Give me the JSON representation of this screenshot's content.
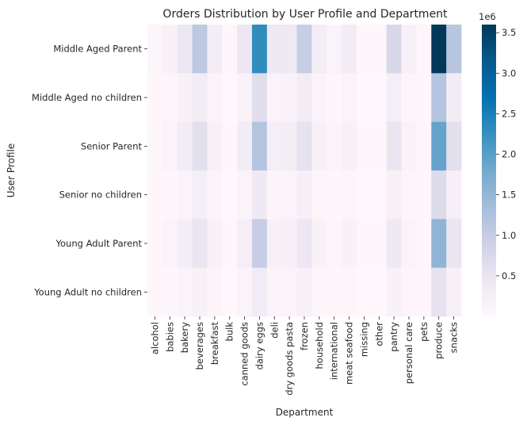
{
  "chart_data": {
    "type": "heatmap",
    "title": "Orders Distribution by User Profile and Department",
    "xlabel": "Department",
    "ylabel": "User Profile",
    "x": [
      "alcohol",
      "babies",
      "bakery",
      "beverages",
      "breakfast",
      "bulk",
      "canned goods",
      "dairy eggs",
      "deli",
      "dry goods pasta",
      "frozen",
      "household",
      "international",
      "meat seafood",
      "missing",
      "other",
      "pantry",
      "personal care",
      "pets",
      "produce",
      "snacks"
    ],
    "y": [
      "Middle Aged Parent",
      "Middle Aged no children",
      "Senior Parent",
      "Senior no children",
      "Young Adult Parent",
      "Young Adult no children"
    ],
    "values": [
      [
        60000,
        175000,
        460000,
        1100000,
        290000,
        30000,
        440000,
        2300000,
        380000,
        400000,
        1000000,
        280000,
        120000,
        300000,
        30000,
        40000,
        760000,
        180000,
        40000,
        3600000,
        1150000
      ],
      [
        20000,
        50000,
        170000,
        300000,
        100000,
        10000,
        150000,
        650000,
        120000,
        140000,
        300000,
        100000,
        40000,
        100000,
        10000,
        10000,
        250000,
        60000,
        20000,
        1200000,
        300000
      ],
      [
        40000,
        120000,
        320000,
        600000,
        200000,
        20000,
        300000,
        1200000,
        250000,
        280000,
        550000,
        200000,
        80000,
        200000,
        20000,
        30000,
        480000,
        130000,
        30000,
        1900000,
        600000
      ],
      [
        15000,
        40000,
        120000,
        250000,
        80000,
        10000,
        110000,
        400000,
        90000,
        100000,
        220000,
        70000,
        30000,
        70000,
        10000,
        10000,
        180000,
        50000,
        15000,
        700000,
        220000
      ],
      [
        30000,
        100000,
        260000,
        500000,
        170000,
        20000,
        240000,
        1000000,
        200000,
        220000,
        450000,
        160000,
        60000,
        160000,
        20000,
        20000,
        380000,
        100000,
        30000,
        1550000,
        500000
      ],
      [
        15000,
        40000,
        120000,
        200000,
        80000,
        10000,
        110000,
        350000,
        90000,
        100000,
        200000,
        70000,
        30000,
        70000,
        10000,
        10000,
        160000,
        50000,
        15000,
        550000,
        200000
      ]
    ],
    "colorbar": {
      "ticks": [
        0.5,
        1.0,
        1.5,
        2.0,
        2.5,
        3.0,
        3.5
      ],
      "tick_labels": [
        "0.5",
        "1.0",
        "1.5",
        "2.0",
        "2.5",
        "3.0",
        "3.5"
      ],
      "multiplier_label": "1e6",
      "range": [
        0,
        3600000
      ]
    },
    "colormap": [
      "#fff7fb",
      "#ece7f2",
      "#d0d1e6",
      "#a6bddb",
      "#74a9cf",
      "#3690c0",
      "#0570b0",
      "#045a8d",
      "#023858"
    ]
  }
}
